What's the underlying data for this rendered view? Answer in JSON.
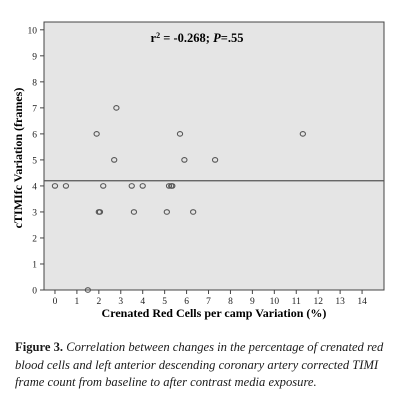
{
  "chart_data": {
    "type": "scatter",
    "annotation": "r² = -0.268; P=.55",
    "xlabel": "Crenated Red Cells per camp Variation (%)",
    "ylabel": "cTIMIfc Variation (frames)",
    "xlim": [
      -0.5,
      15
    ],
    "ylim": [
      0,
      10.3
    ],
    "xticks": [
      "0",
      "1",
      "2",
      "3",
      "4",
      "5",
      "6",
      "7",
      "8",
      "9",
      "10",
      "11",
      "12",
      "13",
      "14"
    ],
    "yticks": [
      "0",
      "1",
      "2",
      "3",
      "4",
      "5",
      "6",
      "7",
      "8",
      "9",
      "10"
    ],
    "grid": false,
    "reference_line_y": 4.2,
    "points": [
      {
        "x": 0.0,
        "y": 4
      },
      {
        "x": 0.5,
        "y": 4
      },
      {
        "x": 1.5,
        "y": 0
      },
      {
        "x": 1.9,
        "y": 6
      },
      {
        "x": 2.0,
        "y": 3
      },
      {
        "x": 2.05,
        "y": 3
      },
      {
        "x": 2.2,
        "y": 4
      },
      {
        "x": 2.7,
        "y": 5
      },
      {
        "x": 2.8,
        "y": 7
      },
      {
        "x": 3.5,
        "y": 4
      },
      {
        "x": 3.6,
        "y": 3
      },
      {
        "x": 4.0,
        "y": 4
      },
      {
        "x": 5.1,
        "y": 3
      },
      {
        "x": 5.2,
        "y": 4
      },
      {
        "x": 5.3,
        "y": 4
      },
      {
        "x": 5.35,
        "y": 4
      },
      {
        "x": 5.7,
        "y": 6
      },
      {
        "x": 5.9,
        "y": 5
      },
      {
        "x": 6.3,
        "y": 3
      },
      {
        "x": 7.3,
        "y": 5
      },
      {
        "x": 11.3,
        "y": 6
      }
    ],
    "colors": {
      "plot_background": "#e5e5e5",
      "marker_edge": "#555555",
      "reference_line": "#555555"
    }
  },
  "caption": {
    "label": "Figure 3.",
    "text": "Correlation between changes in the percentage of crenated red blood cells and left anterior descending coronary artery corrected TIMI frame count from baseline to after contrast media exposure."
  }
}
